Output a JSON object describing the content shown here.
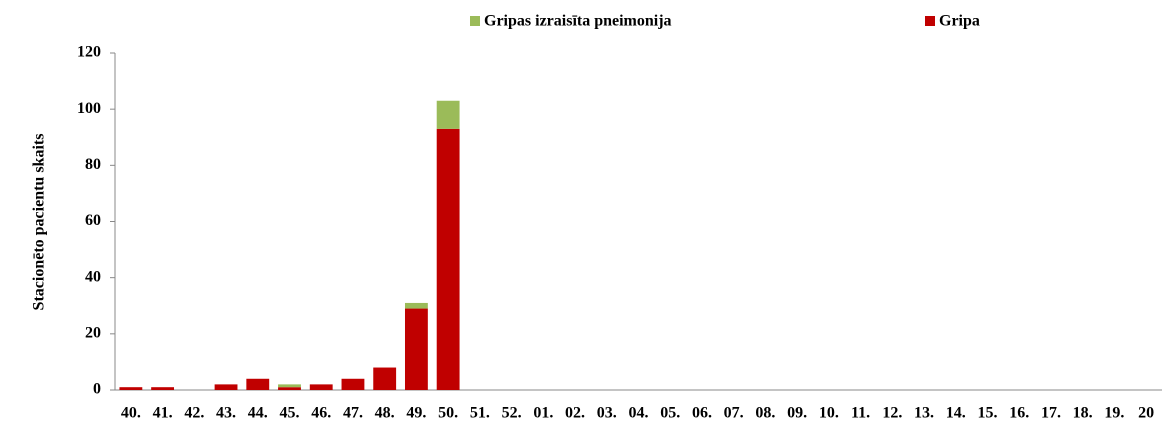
{
  "chart_data": {
    "type": "stacked_bar",
    "y_label": "Stacionēto pacientu skaits",
    "categories": [
      "40.",
      "41.",
      "42.",
      "43.",
      "44.",
      "45.",
      "46.",
      "47.",
      "48.",
      "49.",
      "50.",
      "51.",
      "52.",
      "01.",
      "02.",
      "03.",
      "04.",
      "05.",
      "06.",
      "07.",
      "08.",
      "09.",
      "10.",
      "11.",
      "12.",
      "13.",
      "14.",
      "15.",
      "16.",
      "17.",
      "18.",
      "19.",
      "20"
    ],
    "series": [
      {
        "name": "Gripas izraisīta pneimonija",
        "color": "#9bbb59",
        "values": [
          0,
          0,
          0,
          0,
          0,
          1,
          0,
          0,
          0,
          2,
          10,
          null,
          null,
          null,
          null,
          null,
          null,
          null,
          null,
          null,
          null,
          null,
          null,
          null,
          null,
          null,
          null,
          null,
          null,
          null,
          null,
          null,
          null
        ]
      },
      {
        "name": "Gripa",
        "color": "#c00000",
        "values": [
          1,
          1,
          0,
          2,
          4,
          1,
          2,
          4,
          8,
          29,
          93,
          null,
          null,
          null,
          null,
          null,
          null,
          null,
          null,
          null,
          null,
          null,
          null,
          null,
          null,
          null,
          null,
          null,
          null,
          null,
          null,
          null,
          null
        ]
      }
    ],
    "ylim": [
      0,
      120
    ],
    "yticks": [
      0,
      20,
      40,
      60,
      80,
      100,
      120
    ],
    "grid": false,
    "legend": "top"
  }
}
